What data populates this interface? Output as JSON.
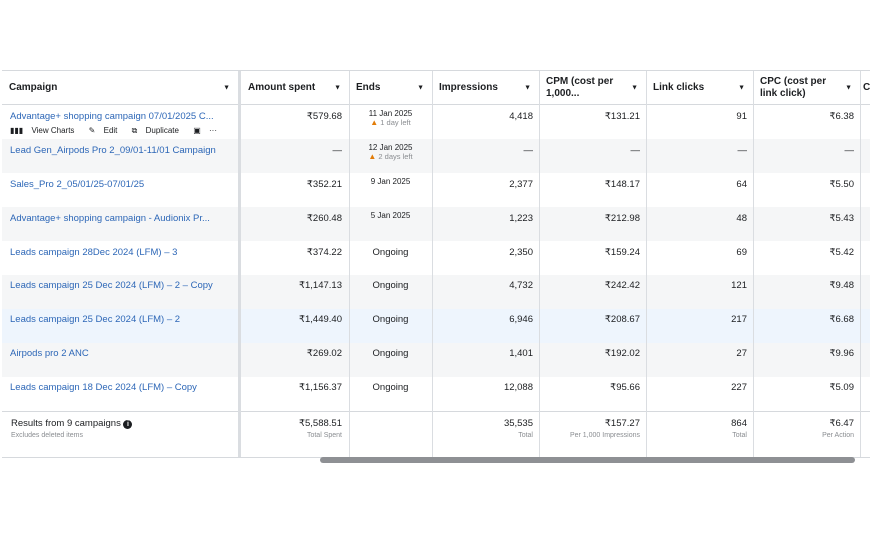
{
  "headers": {
    "campaign": "Campaign",
    "amount_spent": "Amount spent",
    "ends": "Ends",
    "impressions": "Impressions",
    "cpm_line1": "CPM (cost per",
    "cpm_line2": "1,000...",
    "link_clicks": "Link clicks",
    "cpc_line1": "CPC (cost per",
    "cpc_line2": "link click)",
    "next_partial": "C"
  },
  "row_actions": {
    "view_charts": "View Charts",
    "edit": "Edit",
    "duplicate": "Duplicate",
    "more": "···"
  },
  "rows": [
    {
      "campaign": "Advantage+ shopping campaign 07/01/2025 C...",
      "amount": "₹579.68",
      "ends_date": "11 Jan 2025",
      "ends_note": "1 day left",
      "impressions": "4,418",
      "cpm": "₹131.21",
      "clicks": "91",
      "cpc": "₹6.38"
    },
    {
      "campaign": "Lead Gen_Airpods Pro 2_09/01-11/01 Campaign",
      "amount": "—",
      "ends_date": "12 Jan 2025",
      "ends_note": "2 days left",
      "impressions": "—",
      "cpm": "—",
      "clicks": "—",
      "cpc": "—"
    },
    {
      "campaign": "Sales_Pro 2_05/01/25-07/01/25",
      "amount": "₹352.21",
      "ends_date": "9 Jan 2025",
      "impressions": "2,377",
      "cpm": "₹148.17",
      "clicks": "64",
      "cpc": "₹5.50"
    },
    {
      "campaign": "Advantage+ shopping campaign - Audionix Pr...",
      "amount": "₹260.48",
      "ends_date": "5 Jan 2025",
      "impressions": "1,223",
      "cpm": "₹212.98",
      "clicks": "48",
      "cpc": "₹5.43"
    },
    {
      "campaign": "Leads campaign 28Dec 2024 (LFM) – 3",
      "amount": "₹374.22",
      "ends": "Ongoing",
      "impressions": "2,350",
      "cpm": "₹159.24",
      "clicks": "69",
      "cpc": "₹5.42"
    },
    {
      "campaign": "Leads campaign 25 Dec 2024 (LFM) – 2 – Copy",
      "amount": "₹1,147.13",
      "ends": "Ongoing",
      "impressions": "4,732",
      "cpm": "₹242.42",
      "clicks": "121",
      "cpc": "₹9.48"
    },
    {
      "campaign": "Leads campaign 25 Dec 2024 (LFM) – 2",
      "amount": "₹1,449.40",
      "ends": "Ongoing",
      "impressions": "6,946",
      "cpm": "₹208.67",
      "clicks": "217",
      "cpc": "₹6.68"
    },
    {
      "campaign": "Airpods pro 2 ANC",
      "amount": "₹269.02",
      "ends": "Ongoing",
      "impressions": "1,401",
      "cpm": "₹192.02",
      "clicks": "27",
      "cpc": "₹9.96"
    },
    {
      "campaign": "Leads campaign 18 Dec 2024 (LFM) – Copy",
      "amount": "₹1,156.37",
      "ends": "Ongoing",
      "impressions": "12,088",
      "cpm": "₹95.66",
      "clicks": "227",
      "cpc": "₹5.09"
    }
  ],
  "totals": {
    "label": "Results from 9 campaigns",
    "note": "Excludes deleted items",
    "amount": "₹5,588.51",
    "amount_sub": "Total Spent",
    "impressions": "35,535",
    "impressions_sub": "Total",
    "cpm": "₹157.27",
    "cpm_sub": "Per 1,000 Impressions",
    "clicks": "864",
    "clicks_sub": "Total",
    "cpc": "₹6.47",
    "cpc_sub": "Per Action"
  },
  "colors": {
    "link": "#2d67b7",
    "warning": "#e27c08",
    "highlight_row": "#eef5fd",
    "alt_row": "#f5f6f7"
  }
}
